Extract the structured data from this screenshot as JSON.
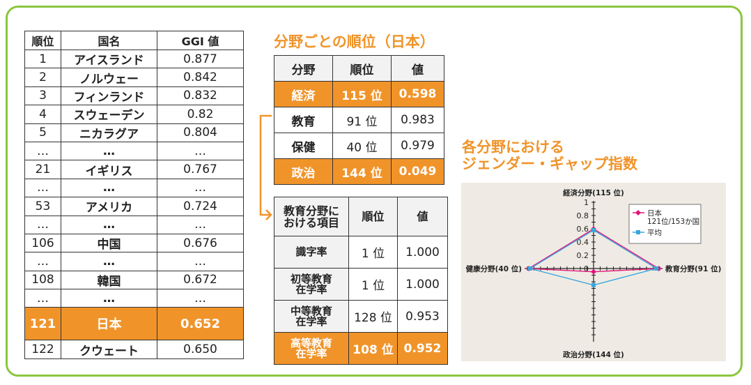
{
  "ranking_table": {
    "headers": [
      "順位",
      "国名",
      "GGI 値"
    ],
    "rows": [
      [
        "1",
        "アイスランド",
        "0.877"
      ],
      [
        "2",
        "ノルウェー",
        "0.842"
      ],
      [
        "3",
        "フィンランド",
        "0.832"
      ],
      [
        "4",
        "スウェーデン",
        "0.82"
      ],
      [
        "5",
        "ニカラグア",
        "0.804"
      ],
      [
        "…",
        "…",
        "…"
      ],
      [
        "21",
        "イギリス",
        "0.767"
      ],
      [
        "…",
        "…",
        "…"
      ],
      [
        "53",
        "アメリカ",
        "0.724"
      ],
      [
        "…",
        "…",
        "…"
      ],
      [
        "106",
        "中国",
        "0.676"
      ],
      [
        "…",
        "…",
        "…"
      ],
      [
        "108",
        "韓国",
        "0.672"
      ],
      [
        "…",
        "…",
        "…"
      ],
      [
        "121",
        "日本",
        "0.652"
      ],
      [
        "122",
        "クウェート",
        "0.650"
      ]
    ],
    "highlight_row": 14
  },
  "field_section": {
    "title": "分野ごとの順位（日本）",
    "headers": [
      "分野",
      "順位",
      "値"
    ],
    "rows": [
      [
        "経済",
        "115 位",
        "0.598"
      ],
      [
        "教育",
        "91 位",
        "0.983"
      ],
      [
        "保健",
        "40 位",
        "0.979"
      ],
      [
        "政治",
        "144 位",
        "0.049"
      ]
    ],
    "highlight_rows": [
      0,
      3
    ]
  },
  "education_table": {
    "headers": [
      "教育分野に\nおける項目",
      "順位",
      "値"
    ],
    "rows": [
      [
        "識字率",
        "1 位",
        "1.000"
      ],
      [
        "初等教育\n在学率",
        "1 位",
        "1.000"
      ],
      [
        "中等教育\n在学率",
        "128 位",
        "0.953"
      ],
      [
        "高等教育\n在学率",
        "108 位",
        "0.952"
      ]
    ],
    "highlight_rows": [
      3
    ]
  },
  "chart_title": "各分野における\nジェンダー・ギャップ指数",
  "colors": {
    "accent_orange": "#f0942a",
    "frame_green": "#8cc63f",
    "japan_series": "#e0157a",
    "average_series": "#3aa7dc",
    "chart_background": "#efebe4"
  },
  "chart_data": {
    "type": "radar",
    "axes": [
      {
        "label": "経済分野(115 位)",
        "direction": "top"
      },
      {
        "label": "教育分野(91 位)",
        "direction": "right"
      },
      {
        "label": "政治分野(144 位)",
        "direction": "bottom"
      },
      {
        "label": "健康分野(40 位)",
        "direction": "left"
      }
    ],
    "scale": [
      0,
      1
    ],
    "ticks": [
      "0",
      "0.2",
      "0.4",
      "0.6",
      "0.8",
      "1"
    ],
    "series": [
      {
        "name": "日本",
        "sublabel": "121位/153か国",
        "values": [
          0.598,
          0.983,
          0.049,
          0.979
        ],
        "color": "#e0157a",
        "marker": "diamond"
      },
      {
        "name": "平均",
        "values": [
          0.58,
          0.95,
          0.25,
          0.96
        ],
        "color": "#3aa7dc",
        "marker": "square"
      }
    ],
    "legend_position": "top-right",
    "grid": false
  }
}
